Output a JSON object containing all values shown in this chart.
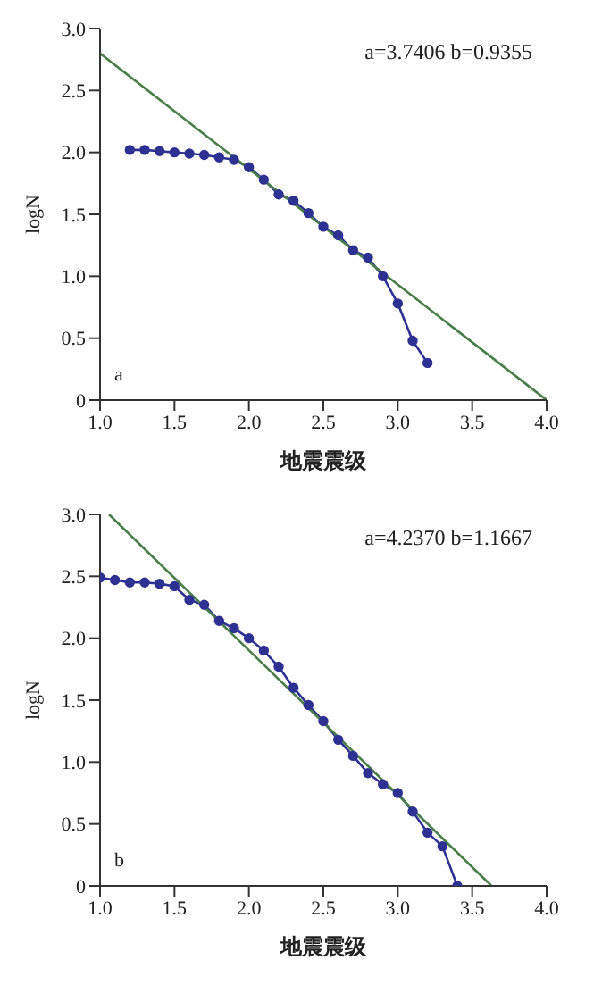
{
  "chart_data": [
    {
      "type": "line",
      "xlabel": "地震震级",
      "ylabel": "logN",
      "xlim": [
        1,
        4
      ],
      "ylim": [
        0,
        3
      ],
      "xticks": [
        {
          "value": 1,
          "label": "1.0"
        },
        {
          "value": 1.5,
          "label": "1.5"
        },
        {
          "value": 2,
          "label": "2.0"
        },
        {
          "value": 2.5,
          "label": "2.5"
        },
        {
          "value": 3,
          "label": "3.0"
        },
        {
          "value": 3.5,
          "label": "3.5"
        },
        {
          "value": 4,
          "label": "4.0"
        }
      ],
      "yticks": [
        0,
        {
          "value": 0.5,
          "label": "0.5"
        },
        {
          "value": 1,
          "label": "1.0"
        },
        {
          "value": 1.5,
          "label": "1.5"
        },
        {
          "value": 2,
          "label": "2.0"
        },
        {
          "value": 2.5,
          "label": "2.5"
        },
        {
          "value": 3,
          "label": "3.0"
        }
      ],
      "grid": false,
      "legend": false,
      "annotations": [
        "a=3.7406  b=0.9355",
        "a"
      ],
      "series": [
        {
          "color": "#2e3192",
          "marker": "circle",
          "x": [
            1.2,
            1.3,
            1.4,
            1.5,
            1.6,
            1.7,
            1.8,
            1.9,
            2.0,
            2.1,
            2.2,
            2.3,
            2.4,
            2.5,
            2.6,
            2.7,
            2.8,
            2.9,
            3.0,
            3.1,
            3.2
          ],
          "values": [
            2.02,
            2.02,
            2.01,
            2.0,
            1.99,
            1.98,
            1.96,
            1.94,
            1.88,
            1.78,
            1.66,
            1.61,
            1.51,
            1.4,
            1.33,
            1.21,
            1.15,
            1.0,
            0.78,
            0.48,
            0.3
          ]
        },
        {
          "color": "#4a7d4a",
          "marker": "none",
          "x": [
            1,
            4
          ],
          "values": [
            2.8,
            0
          ]
        }
      ]
    },
    {
      "type": "line",
      "xlabel": "地震震级",
      "ylabel": "logN",
      "xlim": [
        1,
        4
      ],
      "ylim": [
        0,
        3
      ],
      "xticks": [
        {
          "value": 1,
          "label": "1.0"
        },
        {
          "value": 1.5,
          "label": "1.5"
        },
        {
          "value": 2,
          "label": "2.0"
        },
        {
          "value": 2.5,
          "label": "2.5"
        },
        {
          "value": 3,
          "label": "3.0"
        },
        {
          "value": 3.5,
          "label": "3.5"
        },
        {
          "value": 4,
          "label": "4.0"
        }
      ],
      "yticks": [
        0,
        {
          "value": 0.5,
          "label": "0.5"
        },
        {
          "value": 1,
          "label": "1.0"
        },
        {
          "value": 1.5,
          "label": "1.5"
        },
        {
          "value": 2,
          "label": "2.0"
        },
        {
          "value": 2.5,
          "label": "2.5"
        },
        {
          "value": 3,
          "label": "3.0"
        }
      ],
      "grid": false,
      "legend": false,
      "annotations": [
        "a=4.2370  b=1.1667",
        "b"
      ],
      "series": [
        {
          "color": "#2e3192",
          "marker": "circle",
          "x": [
            1.0,
            1.1,
            1.2,
            1.3,
            1.4,
            1.5,
            1.6,
            1.7,
            1.8,
            1.9,
            2.0,
            2.1,
            2.2,
            2.3,
            2.4,
            2.5,
            2.6,
            2.7,
            2.8,
            2.9,
            3.0,
            3.1,
            3.2,
            3.3,
            3.4
          ],
          "values": [
            2.49,
            2.47,
            2.45,
            2.45,
            2.44,
            2.42,
            2.31,
            2.27,
            2.14,
            2.08,
            2.0,
            1.9,
            1.77,
            1.6,
            1.46,
            1.33,
            1.18,
            1.05,
            0.91,
            0.82,
            0.75,
            0.6,
            0.43,
            0.32,
            0
          ]
        },
        {
          "color": "#4a7d4a",
          "marker": "none",
          "x": [
            1.06,
            3.63
          ],
          "values": [
            3.0,
            0
          ]
        }
      ]
    }
  ]
}
